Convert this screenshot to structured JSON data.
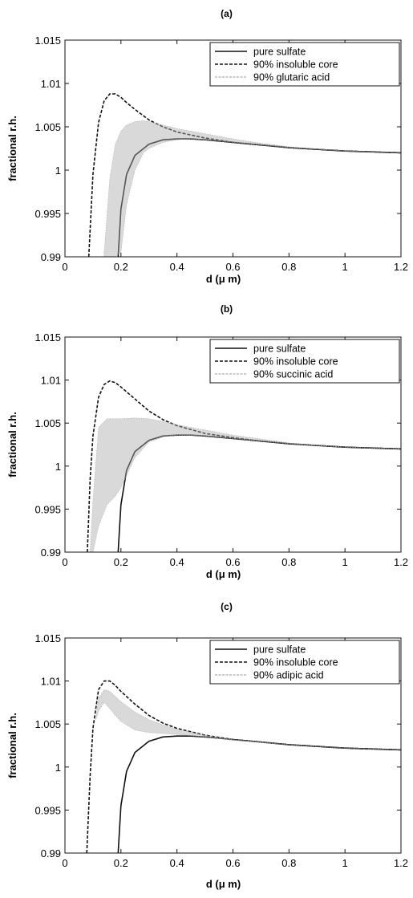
{
  "chart_data": [
    {
      "type": "line",
      "title": "(a)",
      "xlabel": "d (μ m)",
      "ylabel": "fractional r.h.",
      "xlim": [
        0,
        1.2
      ],
      "ylim": [
        0.99,
        1.015
      ],
      "x_ticks": [
        "0",
        "0.2",
        "0.4",
        "0.6",
        "0.8",
        "1",
        "1.2"
      ],
      "y_ticks": [
        "0.99",
        "0.995",
        "1",
        "1.005",
        "1.01",
        "1.015"
      ],
      "grid": false,
      "legend_position": "top-right",
      "series": [
        {
          "name": "pure sulfate",
          "style": "solid",
          "color": "#111111",
          "x": [
            0.19,
            0.2,
            0.22,
            0.25,
            0.3,
            0.35,
            0.4,
            0.45,
            0.5,
            0.6,
            0.7,
            0.8,
            0.9,
            1.0,
            1.1,
            1.2
          ],
          "y": [
            0.99,
            0.9955,
            0.9995,
            1.0017,
            1.003,
            1.0035,
            1.0036,
            1.0036,
            1.0035,
            1.0032,
            1.0029,
            1.0026,
            1.0024,
            1.0022,
            1.0021,
            1.002
          ]
        },
        {
          "name": "90% insoluble core",
          "style": "dashed",
          "color": "#111111",
          "x": [
            0.085,
            0.1,
            0.12,
            0.14,
            0.16,
            0.18,
            0.2,
            0.22,
            0.25,
            0.3,
            0.35,
            0.4,
            0.5,
            0.6,
            0.7,
            0.8,
            0.9,
            1.0,
            1.1,
            1.2
          ],
          "y": [
            0.99,
            0.9995,
            1.0055,
            1.008,
            1.0088,
            1.0088,
            1.0084,
            1.0078,
            1.007,
            1.0058,
            1.005,
            1.0044,
            1.0037,
            1.0032,
            1.0029,
            1.0026,
            1.0024,
            1.0022,
            1.0021,
            1.002
          ]
        },
        {
          "name": "90% glutaric acid",
          "style": "band",
          "color": "#aaaaaa",
          "x": [
            0.14,
            0.16,
            0.18,
            0.2,
            0.22,
            0.25,
            0.28,
            0.3,
            0.35,
            0.4,
            0.45,
            0.5,
            0.6,
            0.7,
            0.8,
            1.0,
            1.2
          ],
          "upper": [
            0.9905,
            0.999,
            1.003,
            1.0045,
            1.0052,
            1.0056,
            1.0057,
            1.0056,
            1.0052,
            1.0048,
            1.0045,
            1.0042,
            1.0036,
            1.0031,
            1.0027,
            1.0022,
            1.002
          ],
          "lower": [
            0.99,
            0.99,
            0.99,
            0.9905,
            0.996,
            1.0,
            1.002,
            1.0025,
            1.0032,
            1.0035,
            1.0036,
            1.0035,
            1.0032,
            1.0029,
            1.0026,
            1.0022,
            1.002
          ]
        }
      ]
    },
    {
      "type": "line",
      "title": "(b)",
      "xlabel": "d (μ m)",
      "ylabel": "fractional r.h.",
      "xlim": [
        0,
        1.2
      ],
      "ylim": [
        0.99,
        1.015
      ],
      "x_ticks": [
        "0",
        "0.2",
        "0.4",
        "0.6",
        "0.8",
        "1",
        "1.2"
      ],
      "y_ticks": [
        "0.99",
        "0.995",
        "1",
        "1.005",
        "1.01",
        "1.015"
      ],
      "grid": false,
      "legend_position": "top-right",
      "series": [
        {
          "name": "pure sulfate",
          "style": "solid",
          "color": "#111111",
          "x": [
            0.19,
            0.2,
            0.22,
            0.25,
            0.3,
            0.35,
            0.4,
            0.45,
            0.5,
            0.6,
            0.7,
            0.8,
            0.9,
            1.0,
            1.1,
            1.2
          ],
          "y": [
            0.99,
            0.9955,
            0.9995,
            1.0017,
            1.003,
            1.0035,
            1.0036,
            1.0036,
            1.0035,
            1.0032,
            1.0029,
            1.0026,
            1.0024,
            1.0022,
            1.0021,
            1.002
          ]
        },
        {
          "name": "90% insoluble core",
          "style": "dashed",
          "color": "#111111",
          "x": [
            0.08,
            0.09,
            0.1,
            0.12,
            0.14,
            0.16,
            0.18,
            0.2,
            0.25,
            0.3,
            0.35,
            0.4,
            0.5,
            0.6,
            0.7,
            0.8,
            0.9,
            1.0,
            1.1,
            1.2
          ],
          "y": [
            0.99,
            0.9985,
            1.0035,
            1.008,
            1.0095,
            1.0099,
            1.0097,
            1.0092,
            1.0078,
            1.0064,
            1.0054,
            1.0047,
            1.0038,
            1.0033,
            1.0029,
            1.0026,
            1.0024,
            1.0022,
            1.0021,
            1.002
          ]
        },
        {
          "name": "90% succinic acid",
          "style": "band",
          "color": "#aaaaaa",
          "x": [
            0.09,
            0.1,
            0.12,
            0.15,
            0.18,
            0.2,
            0.25,
            0.3,
            0.35,
            0.4,
            0.5,
            0.6,
            0.8,
            1.0,
            1.2
          ],
          "upper": [
            0.99,
            0.996,
            1.0045,
            1.0055,
            1.0055,
            1.0055,
            1.0056,
            1.0055,
            1.0052,
            1.0048,
            1.0042,
            1.0036,
            1.0027,
            1.0022,
            1.002
          ],
          "lower": [
            0.99,
            0.99,
            0.993,
            0.9955,
            0.9965,
            0.9975,
            1.001,
            1.0028,
            1.0034,
            1.0036,
            1.0035,
            1.0032,
            1.0026,
            1.0022,
            1.002
          ]
        }
      ]
    },
    {
      "type": "line",
      "title": "(c)",
      "xlabel": "d (μ m)",
      "ylabel": "fractional r.h.",
      "xlim": [
        0,
        1.2
      ],
      "ylim": [
        0.99,
        1.015
      ],
      "x_ticks": [
        "0",
        "0.2",
        "0.4",
        "0.6",
        "0.8",
        "1",
        "1.2"
      ],
      "y_ticks": [
        "0.99",
        "0.995",
        "1",
        "1.005",
        "1.01",
        "1.015"
      ],
      "grid": false,
      "legend_position": "top-right",
      "series": [
        {
          "name": "pure sulfate",
          "style": "solid",
          "color": "#111111",
          "x": [
            0.19,
            0.2,
            0.22,
            0.25,
            0.3,
            0.35,
            0.4,
            0.45,
            0.5,
            0.6,
            0.7,
            0.8,
            0.9,
            1.0,
            1.1,
            1.2
          ],
          "y": [
            0.99,
            0.9955,
            0.9995,
            1.0017,
            1.003,
            1.0035,
            1.0036,
            1.0036,
            1.0035,
            1.0032,
            1.0029,
            1.0026,
            1.0024,
            1.0022,
            1.0021,
            1.002
          ]
        },
        {
          "name": "90% insoluble core",
          "style": "dashed",
          "color": "#111111",
          "x": [
            0.078,
            0.09,
            0.1,
            0.12,
            0.14,
            0.16,
            0.18,
            0.2,
            0.25,
            0.3,
            0.35,
            0.4,
            0.5,
            0.6,
            0.7,
            0.8,
            0.9,
            1.0,
            1.1,
            1.2
          ],
          "y": [
            0.99,
            0.999,
            1.0045,
            1.009,
            1.01,
            1.01,
            1.0095,
            1.0088,
            1.0073,
            1.006,
            1.0051,
            1.0045,
            1.0037,
            1.0032,
            1.0029,
            1.0026,
            1.0024,
            1.0022,
            1.0021,
            1.002
          ]
        },
        {
          "name": "90% adipic acid",
          "style": "band",
          "color": "#aaaaaa",
          "x": [
            0.11,
            0.12,
            0.14,
            0.16,
            0.18,
            0.2,
            0.25,
            0.3,
            0.35,
            0.4,
            0.5,
            0.6,
            0.8,
            1.0,
            1.2
          ],
          "upper": [
            1.0055,
            1.008,
            1.009,
            1.0088,
            1.0082,
            1.0076,
            1.0064,
            1.0055,
            1.0049,
            1.0044,
            1.0037,
            1.0032,
            1.0026,
            1.0022,
            1.002
          ],
          "lower": [
            1.0055,
            1.0065,
            1.0075,
            1.0068,
            1.006,
            1.0053,
            1.0043,
            1.004,
            1.0039,
            1.0038,
            1.0035,
            1.0031,
            1.0026,
            1.0022,
            1.002
          ]
        }
      ]
    }
  ]
}
